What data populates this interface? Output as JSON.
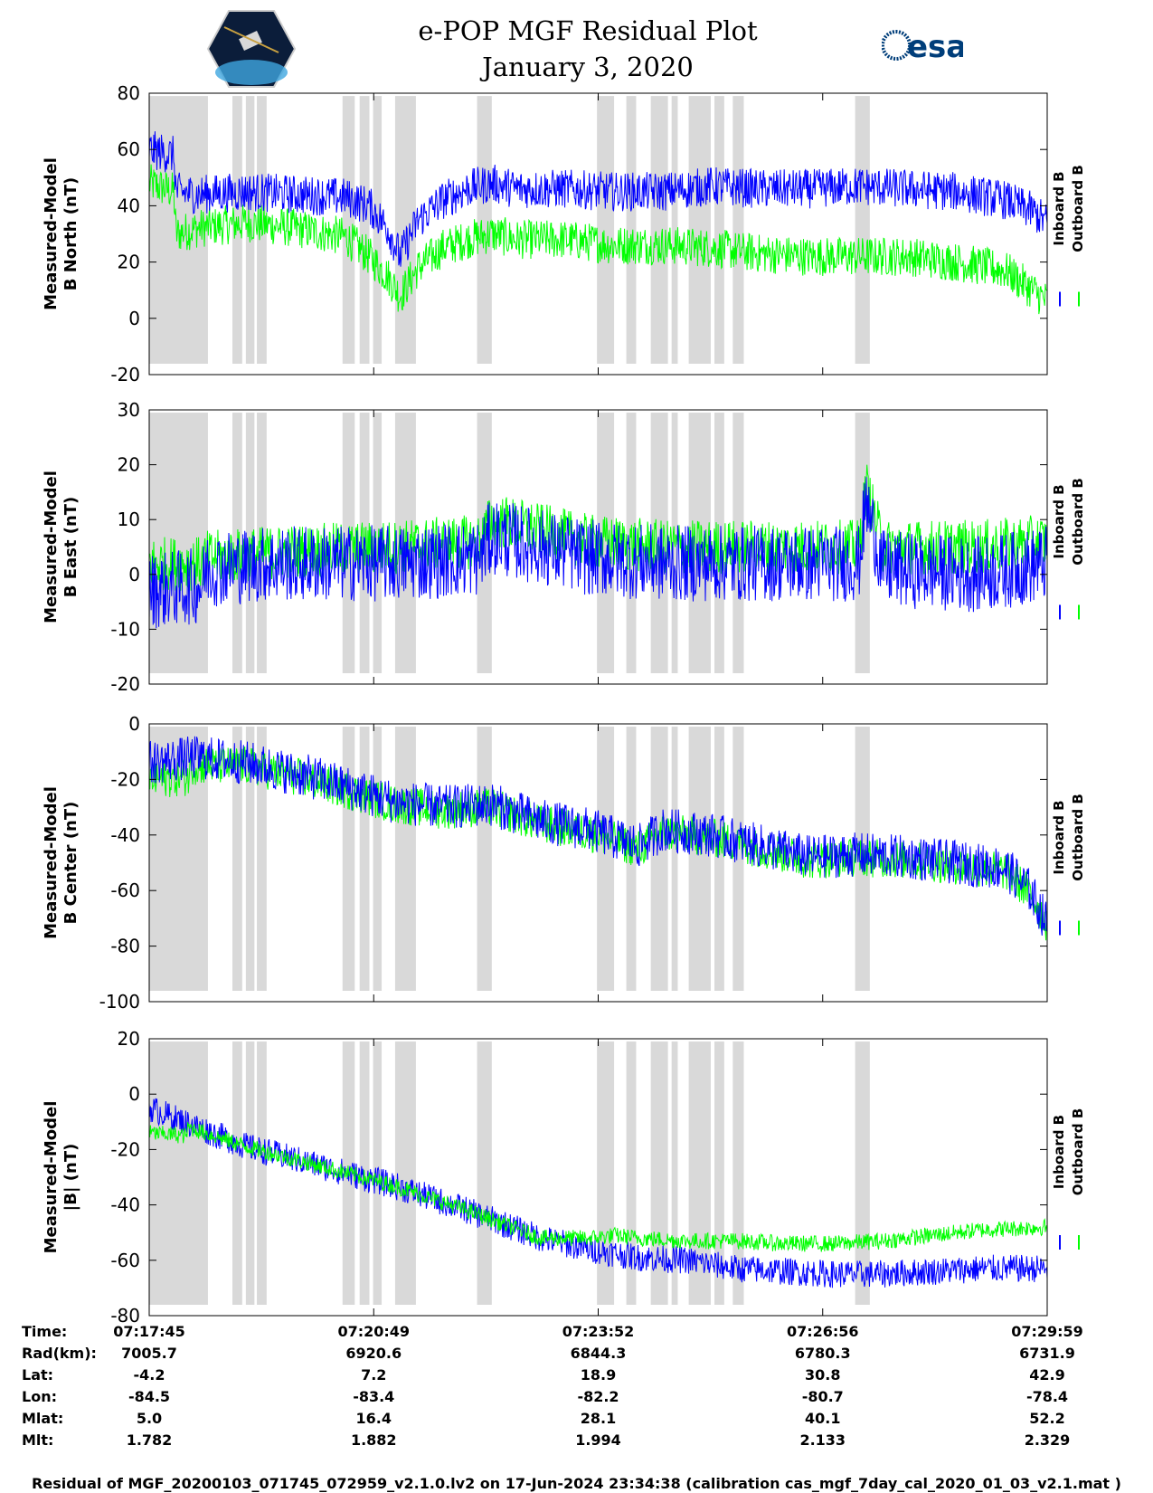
{
  "title_line1": "e-POP MGF Residual Plot",
  "title_line2": "January 3, 2020",
  "logo_right_text": "esa",
  "colors": {
    "inboard": "#0000ff",
    "outboard": "#00ff00",
    "gap_shading": "#d9d9d9"
  },
  "legend": {
    "inboard": "Inboard B",
    "outboard": "Outboard B"
  },
  "chart_data": [
    {
      "type": "line",
      "ylabel_line1": "Measured-Model",
      "ylabel_line2": "B North (nT)",
      "ylim": [
        -20,
        80
      ],
      "yticks": [
        -20,
        0,
        20,
        40,
        60,
        80
      ],
      "x_range_s": [
        0,
        734
      ],
      "gaps_s": [
        [
          0,
          48
        ],
        [
          68,
          76
        ],
        [
          79,
          86
        ],
        [
          88,
          96
        ],
        [
          158,
          168
        ],
        [
          172,
          180
        ],
        [
          183,
          190
        ],
        [
          201,
          218
        ],
        [
          268,
          280
        ],
        [
          366,
          380
        ],
        [
          390,
          398
        ],
        [
          410,
          424
        ],
        [
          427,
          432
        ],
        [
          441,
          459
        ],
        [
          462,
          470
        ],
        [
          477,
          486
        ],
        [
          577,
          589
        ]
      ],
      "series": [
        {
          "name": "Inboard B",
          "color": "#0000ff",
          "x": [
            0,
            20,
            22,
            40,
            80,
            120,
            160,
            180,
            195,
            205,
            220,
            240,
            260,
            280,
            300,
            340,
            380,
            420,
            460,
            500,
            540,
            580,
            620,
            660,
            700,
            722,
            734
          ],
          "y": [
            60,
            58,
            45,
            44,
            45,
            44,
            43,
            40,
            32,
            22,
            35,
            42,
            46,
            48,
            46,
            46,
            45,
            45,
            47,
            46,
            46,
            47,
            46,
            45,
            42,
            38,
            34
          ],
          "noise": 7
        },
        {
          "name": "Outboard B",
          "color": "#00ff00",
          "x": [
            0,
            20,
            22,
            40,
            80,
            120,
            160,
            180,
            195,
            205,
            220,
            240,
            260,
            280,
            300,
            340,
            380,
            420,
            460,
            500,
            540,
            580,
            620,
            660,
            700,
            722,
            734
          ],
          "y": [
            48,
            45,
            30,
            32,
            34,
            32,
            29,
            22,
            15,
            8,
            18,
            25,
            28,
            30,
            28,
            28,
            26,
            26,
            25,
            23,
            22,
            22,
            22,
            20,
            17,
            10,
            6
          ],
          "noise": 7
        }
      ]
    },
    {
      "type": "line",
      "ylabel_line1": "Measured-Model",
      "ylabel_line2": "B East (nT)",
      "ylim": [
        -20,
        30
      ],
      "yticks": [
        -20,
        -10,
        0,
        10,
        20,
        30
      ],
      "x_range_s": [
        0,
        734
      ],
      "gaps_s": [
        [
          0,
          48
        ],
        [
          68,
          76
        ],
        [
          79,
          86
        ],
        [
          88,
          96
        ],
        [
          158,
          168
        ],
        [
          172,
          180
        ],
        [
          183,
          190
        ],
        [
          201,
          218
        ],
        [
          268,
          280
        ],
        [
          366,
          380
        ],
        [
          390,
          398
        ],
        [
          410,
          424
        ],
        [
          427,
          432
        ],
        [
          441,
          459
        ],
        [
          462,
          470
        ],
        [
          477,
          486
        ],
        [
          577,
          589
        ]
      ],
      "series": [
        {
          "name": "Inboard B",
          "color": "#0000ff",
          "x": [
            0,
            44,
            46,
            100,
            200,
            270,
            280,
            360,
            420,
            520,
            580,
            586,
            600,
            680,
            734
          ],
          "y": [
            -3,
            -2,
            1,
            2,
            2,
            3,
            7,
            3,
            2,
            2,
            2,
            13,
            1,
            0,
            2
          ],
          "noise": 7
        },
        {
          "name": "Outboard B",
          "color": "#00ff00",
          "x": [
            0,
            44,
            46,
            100,
            200,
            270,
            280,
            360,
            420,
            520,
            580,
            586,
            600,
            680,
            734
          ],
          "y": [
            2,
            2,
            3,
            4,
            5,
            6,
            10,
            6,
            5,
            5,
            5,
            16,
            5,
            5,
            6
          ],
          "noise": 5
        }
      ]
    },
    {
      "type": "line",
      "ylabel_line1": "Measured-Model",
      "ylabel_line2": "B Center (nT)",
      "ylim": [
        -100,
        0
      ],
      "yticks": [
        -100,
        -80,
        -60,
        -40,
        -20,
        0
      ],
      "x_range_s": [
        0,
        734
      ],
      "gaps_s": [
        [
          0,
          48
        ],
        [
          68,
          76
        ],
        [
          79,
          86
        ],
        [
          88,
          96
        ],
        [
          158,
          168
        ],
        [
          172,
          180
        ],
        [
          183,
          190
        ],
        [
          201,
          218
        ],
        [
          268,
          280
        ],
        [
          366,
          380
        ],
        [
          390,
          398
        ],
        [
          410,
          424
        ],
        [
          427,
          432
        ],
        [
          441,
          459
        ],
        [
          462,
          470
        ],
        [
          477,
          486
        ],
        [
          577,
          589
        ]
      ],
      "series": [
        {
          "name": "Inboard B",
          "color": "#0000ff",
          "x": [
            0,
            40,
            80,
            140,
            200,
            240,
            280,
            320,
            360,
            400,
            420,
            460,
            500,
            540,
            580,
            620,
            660,
            700,
            720,
            734
          ],
          "y": [
            -14,
            -12,
            -14,
            -20,
            -28,
            -30,
            -29,
            -35,
            -38,
            -44,
            -38,
            -40,
            -44,
            -48,
            -47,
            -48,
            -50,
            -52,
            -60,
            -72
          ],
          "noise": 8
        },
        {
          "name": "Outboard B",
          "color": "#00ff00",
          "x": [
            0,
            32,
            34,
            80,
            140,
            200,
            240,
            280,
            320,
            360,
            400,
            420,
            460,
            500,
            540,
            580,
            620,
            660,
            700,
            720,
            734
          ],
          "y": [
            -20,
            -19,
            -15,
            -15,
            -21,
            -29,
            -31,
            -30,
            -36,
            -39,
            -45,
            -39,
            -41,
            -45,
            -49,
            -48,
            -49,
            -51,
            -53,
            -61,
            -72
          ],
          "noise": 7
        }
      ]
    },
    {
      "type": "line",
      "ylabel_line1": "Measured-Model",
      "ylabel_line2": "|B| (nT)",
      "ylim": [
        -80,
        20
      ],
      "yticks": [
        -80,
        -60,
        -40,
        -20,
        0,
        20
      ],
      "x_range_s": [
        0,
        734
      ],
      "gaps_s": [
        [
          0,
          48
        ],
        [
          68,
          76
        ],
        [
          79,
          86
        ],
        [
          88,
          96
        ],
        [
          158,
          168
        ],
        [
          172,
          180
        ],
        [
          183,
          190
        ],
        [
          201,
          218
        ],
        [
          268,
          280
        ],
        [
          366,
          380
        ],
        [
          390,
          398
        ],
        [
          410,
          424
        ],
        [
          427,
          432
        ],
        [
          441,
          459
        ],
        [
          462,
          470
        ],
        [
          477,
          486
        ],
        [
          577,
          589
        ]
      ],
      "series": [
        {
          "name": "Inboard B",
          "color": "#0000ff",
          "x": [
            0,
            40,
            80,
            140,
            200,
            260,
            320,
            360,
            400,
            440,
            480,
            520,
            560,
            600,
            640,
            680,
            734
          ],
          "y": [
            -5,
            -12,
            -19,
            -26,
            -33,
            -42,
            -52,
            -56,
            -59,
            -60,
            -63,
            -64,
            -65,
            -65,
            -64,
            -63,
            -63
          ],
          "noise": 5
        },
        {
          "name": "Outboard B",
          "color": "#00ff00",
          "x": [
            0,
            30,
            32,
            80,
            140,
            200,
            260,
            320,
            360,
            380,
            400,
            440,
            480,
            520,
            560,
            600,
            640,
            680,
            734
          ],
          "y": [
            -14,
            -15,
            -12,
            -19,
            -26,
            -33,
            -42,
            -52,
            -52,
            -51,
            -52,
            -53,
            -53,
            -54,
            -54,
            -53,
            -51,
            -49,
            -48
          ],
          "noise": 3
        }
      ]
    }
  ],
  "info_labels": [
    "Time:",
    "Rad(km):",
    "Lat:",
    "Lon:",
    "Mlat:",
    "Mlt:"
  ],
  "info_columns": [
    [
      "07:17:45",
      "7005.7",
      "-4.2",
      "-84.5",
      "5.0",
      "1.782"
    ],
    [
      "07:20:49",
      "6920.6",
      "7.2",
      "-83.4",
      "16.4",
      "1.882"
    ],
    [
      "07:23:52",
      "6844.3",
      "18.9",
      "-82.2",
      "28.1",
      "1.994"
    ],
    [
      "07:26:56",
      "6780.3",
      "30.8",
      "-80.7",
      "40.1",
      "2.133"
    ],
    [
      "07:29:59",
      "6731.9",
      "42.9",
      "-78.4",
      "52.2",
      "2.329"
    ]
  ],
  "footer": "Residual of MGF_20200103_071745_072959_v2.1.0.lv2 on 17-Jun-2024 23:34:38 (calibration cas_mgf_7day_cal_2020_01_03_v2.1.mat )"
}
